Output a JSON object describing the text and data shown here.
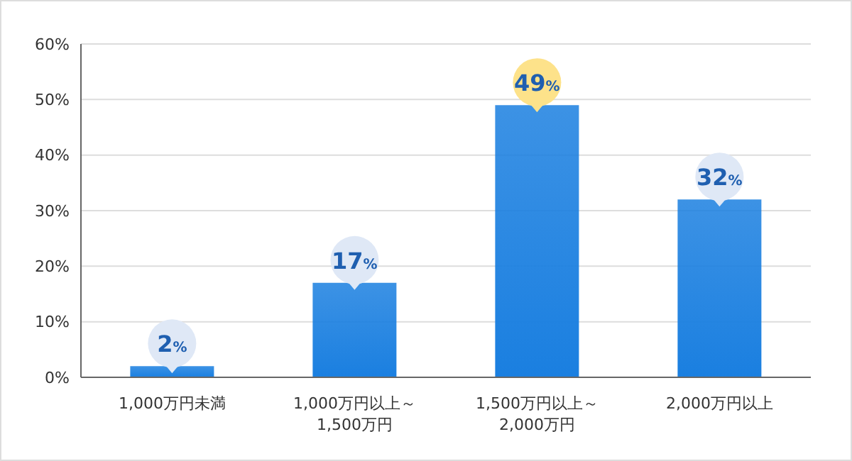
{
  "chart_data": {
    "type": "bar",
    "categories": [
      "1,000万円未満",
      "1,000万円以上～\n1,500万円",
      "1,500万円以上～\n2,000万円",
      "2,000万円以上"
    ],
    "values": [
      2,
      17,
      49,
      32
    ],
    "color": "#1a7fe0",
    "value_labels": [
      "2%",
      "17%",
      "49%",
      "32%"
    ],
    "ylim": [
      0,
      60
    ],
    "yticks": [
      {
        "value": 0,
        "label": "0%"
      },
      {
        "value": 10,
        "label": "10%"
      },
      {
        "value": 20,
        "label": "20%"
      },
      {
        "value": 30,
        "label": "30%"
      },
      {
        "value": 40,
        "label": "40%"
      },
      {
        "value": 50,
        "label": "50%"
      },
      {
        "value": 60,
        "label": "60%"
      }
    ],
    "grid": "y",
    "legend": false
  }
}
